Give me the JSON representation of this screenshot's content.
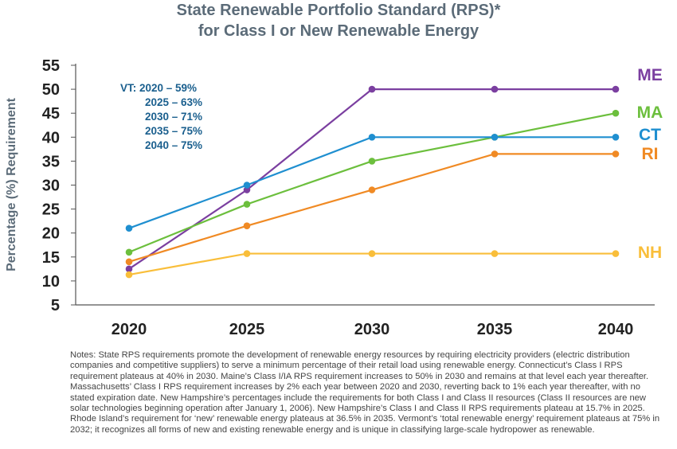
{
  "chart_data": {
    "type": "line",
    "title": "State Renewable Portfolio Standard (RPS)*",
    "subtitle": "for Class I or New Renewable Energy",
    "ylabel": "Percentage (%) Requirement",
    "xlabel": "",
    "ylim": [
      5,
      55
    ],
    "yticks": [
      "5",
      "10",
      "15",
      "20",
      "25",
      "30",
      "35",
      "40",
      "45",
      "50",
      "55"
    ],
    "categories": [
      "2020",
      "2025",
      "2030",
      "2035",
      "2040"
    ],
    "grid": false,
    "legend": "right-side labels",
    "series": [
      {
        "name": "ME",
        "color": "#7b3fa0",
        "values": [
          12.5,
          29,
          50,
          50,
          50
        ]
      },
      {
        "name": "MA",
        "color": "#6cbf3d",
        "values": [
          16,
          26,
          35,
          40,
          45
        ]
      },
      {
        "name": "CT",
        "color": "#1f8fd0",
        "values": [
          21,
          30,
          40,
          40,
          40
        ]
      },
      {
        "name": "RI",
        "color": "#f08a24",
        "values": [
          14,
          21.5,
          29,
          36.5,
          36.5
        ]
      },
      {
        "name": "NH",
        "color": "#f9be3a",
        "values": [
          11.3,
          15.7,
          15.7,
          15.7,
          15.7
        ]
      }
    ],
    "annotation": {
      "color": "#1a5f8e",
      "lines": [
        "VT: 2020 – 59%",
        "2025 – 63%",
        "2030 – 71%",
        "2035 – 75%",
        "2040 – 75%"
      ]
    }
  },
  "notes": "Notes: State RPS requirements promote the development of renewable energy resources by requiring electricity providers (electric distribution companies and competitive suppliers) to serve a minimum percentage of their retail load using renewable energy. Connecticut’s Class I RPS requirement plateaus at 40% in 2030. Maine’s Class I/IA RPS requirement increases to 50% in 2030 and remains at that level each year thereafter. Massachusetts’ Class I RPS requirement increases by 2% each year between 2020 and 2030, reverting back to 1% each year thereafter, with no stated expiration date. New Hampshire’s percentages include the requirements for both Class I and Class II resources (Class II resources are new solar technologies beginning operation after January 1, 2006). New Hampshire’s Class I and Class II RPS requirements plateau at 15.7% in 2025. Rhode Island’s requirement for ‘new’ renewable energy plateaus at 36.5% in 2035. Vermont’s ‘total renewable energy’ requirement plateaus at 75% in 2032; it recognizes all forms of new and existing renewable energy and is unique in classifying large-scale hydropower as renewable."
}
